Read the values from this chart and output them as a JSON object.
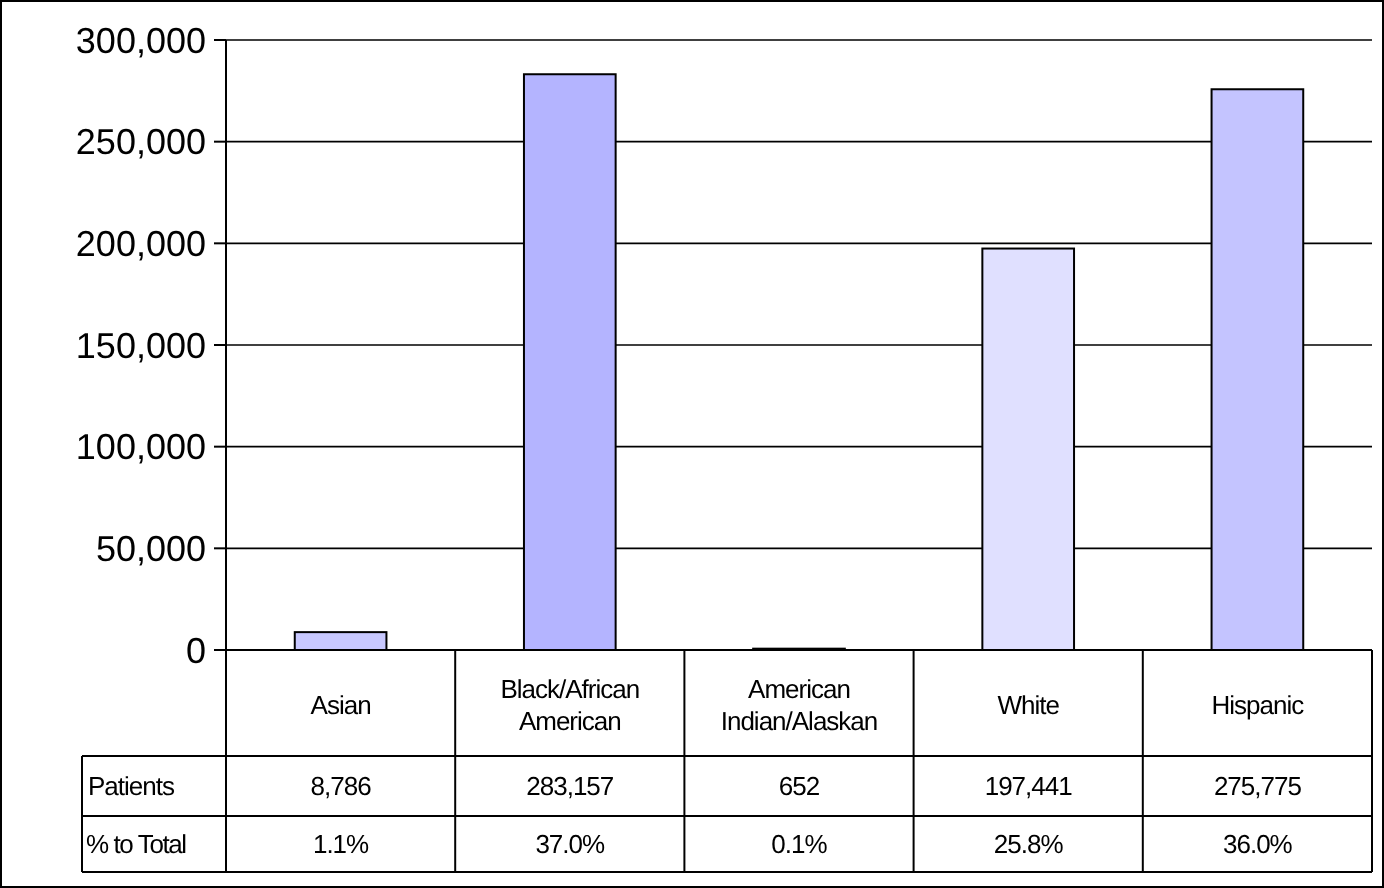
{
  "chart_data": {
    "type": "bar",
    "categories": [
      "Asian",
      "Black/African American",
      "American Indian/Alaskan",
      "White",
      "Hispanic"
    ],
    "series": [
      {
        "name": "Patients",
        "values": [
          8786,
          283157,
          652,
          197441,
          275775
        ],
        "value_labels": [
          "8,786",
          "283,157",
          "652",
          "197,441",
          "275,775"
        ],
        "colors": [
          "#c8c8ff",
          "#b4b4ff",
          "#c0c0ff",
          "#e0e0ff",
          "#c4c4ff"
        ]
      }
    ],
    "ylim": [
      0,
      300000
    ],
    "yticks": [
      0,
      {
        "value": 50000,
        "label": "50,000"
      },
      {
        "value": 100000,
        "label": "100,000"
      },
      {
        "value": 150000,
        "label": "150,000"
      },
      {
        "value": 200000,
        "label": "200,000"
      },
      {
        "value": 250000,
        "label": "250,000"
      },
      {
        "value": 300000,
        "label": "300,000"
      }
    ],
    "grid": "y",
    "annotations": [
      "% to Total",
      "1.1%",
      "37.0%",
      "0.1%",
      "25.8%",
      "36.0%"
    ]
  }
}
